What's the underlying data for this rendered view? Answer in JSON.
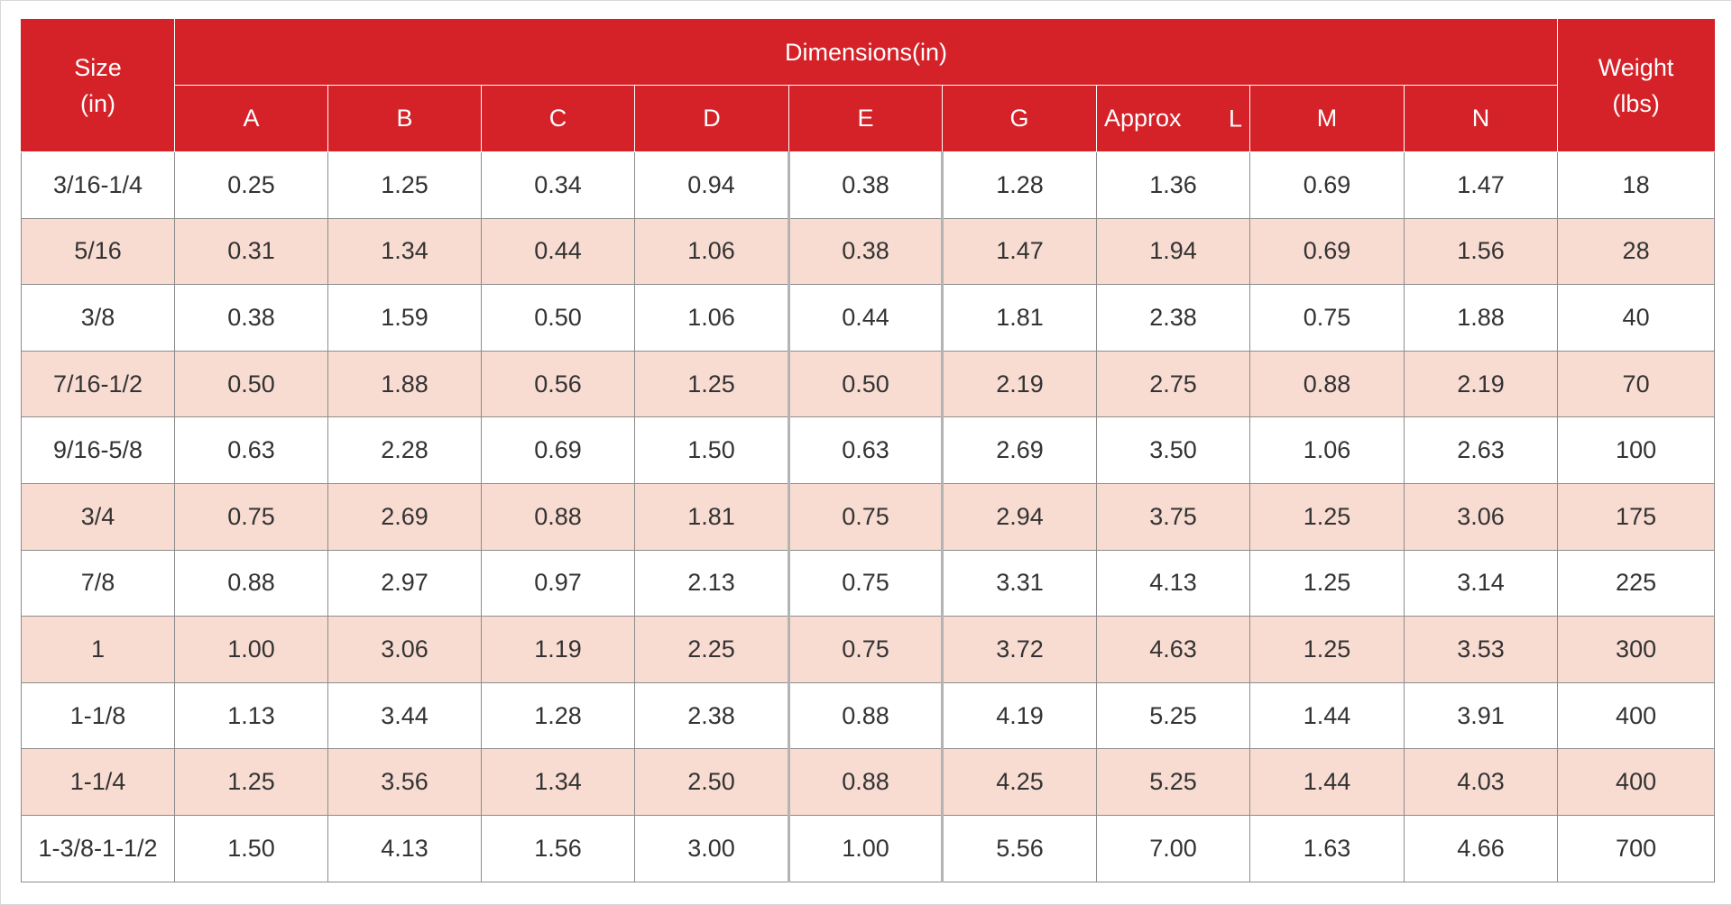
{
  "table": {
    "header": {
      "size_line1": "Size",
      "size_line2": "(in)",
      "dimensions": "Dimensions(in)",
      "weight_line1": "Weight",
      "weight_line2": "(lbs)",
      "columns": [
        "A",
        "B",
        "C",
        "D",
        "E",
        "G",
        "Approx",
        "M",
        "N"
      ],
      "approx_suffix": "L"
    },
    "rows": [
      [
        "3/16-1/4",
        "0.25",
        "1.25",
        "0.34",
        "0.94",
        "0.38",
        "1.28",
        "1.36",
        "0.69",
        "1.47",
        "18"
      ],
      [
        "5/16",
        "0.31",
        "1.34",
        "0.44",
        "1.06",
        "0.38",
        "1.47",
        "1.94",
        "0.69",
        "1.56",
        "28"
      ],
      [
        "3/8",
        "0.38",
        "1.59",
        "0.50",
        "1.06",
        "0.44",
        "1.81",
        "2.38",
        "0.75",
        "1.88",
        "40"
      ],
      [
        "7/16-1/2",
        "0.50",
        "1.88",
        "0.56",
        "1.25",
        "0.50",
        "2.19",
        "2.75",
        "0.88",
        "2.19",
        "70"
      ],
      [
        "9/16-5/8",
        "0.63",
        "2.28",
        "0.69",
        "1.50",
        "0.63",
        "2.69",
        "3.50",
        "1.06",
        "2.63",
        "100"
      ],
      [
        "3/4",
        "0.75",
        "2.69",
        "0.88",
        "1.81",
        "0.75",
        "2.94",
        "3.75",
        "1.25",
        "3.06",
        "175"
      ],
      [
        "7/8",
        "0.88",
        "2.97",
        "0.97",
        "2.13",
        "0.75",
        "3.31",
        "4.13",
        "1.25",
        "3.14",
        "225"
      ],
      [
        "1",
        "1.00",
        "3.06",
        "1.19",
        "2.25",
        "0.75",
        "3.72",
        "4.63",
        "1.25",
        "3.53",
        "300"
      ],
      [
        "1-1/8",
        "1.13",
        "3.44",
        "1.28",
        "2.38",
        "0.88",
        "4.19",
        "5.25",
        "1.44",
        "3.91",
        "400"
      ],
      [
        "1-1/4",
        "1.25",
        "3.56",
        "1.34",
        "2.50",
        "0.88",
        "4.25",
        "5.25",
        "1.44",
        "4.03",
        "400"
      ],
      [
        "1-3/8-1-1/2",
        "1.50",
        "4.13",
        "1.56",
        "3.00",
        "1.00",
        "5.56",
        "7.00",
        "1.63",
        "4.66",
        "700"
      ]
    ],
    "colors": {
      "header_bg": "#d52128",
      "header_text": "#ffffff",
      "row_odd_bg": "#ffffff",
      "row_even_bg": "#f8dcd2",
      "cell_border": "#8c8c8c"
    }
  }
}
